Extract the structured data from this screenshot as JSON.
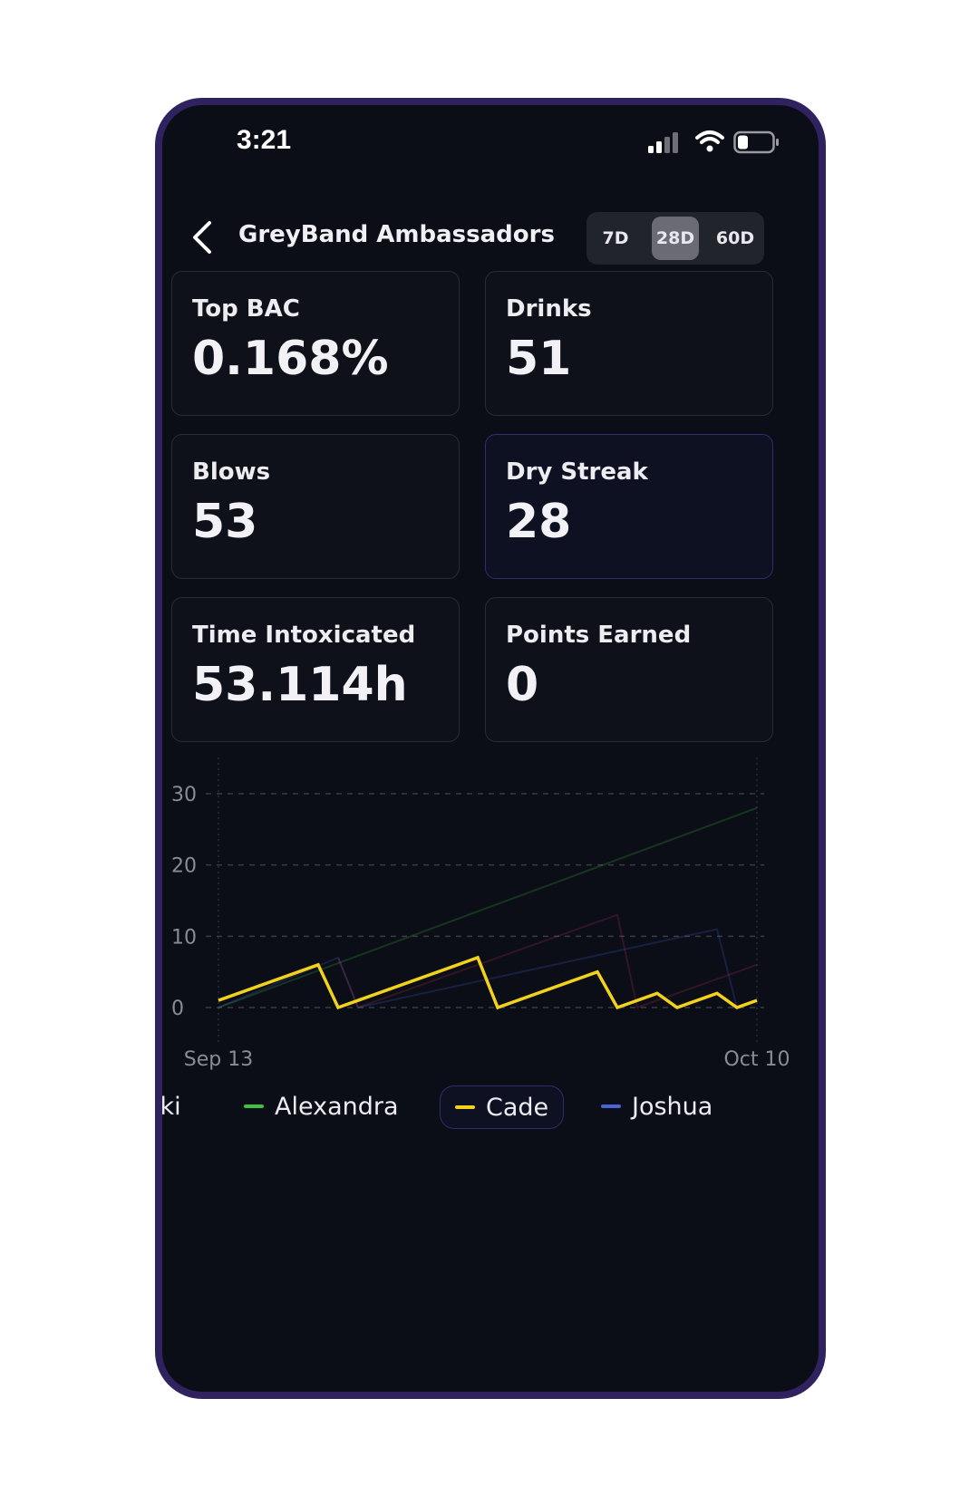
{
  "status_bar": {
    "time": "3:21"
  },
  "header": {
    "title": "GreyBand Ambassadors",
    "ranges": [
      "7D",
      "28D",
      "60D"
    ],
    "active_range": "28D"
  },
  "stats": {
    "top_bac": {
      "label": "Top BAC",
      "value": "0.168%"
    },
    "drinks": {
      "label": "Drinks",
      "value": "51"
    },
    "blows": {
      "label": "Blows",
      "value": "53"
    },
    "dry_streak": {
      "label": "Dry Streak",
      "value": "28"
    },
    "time_intoxicated": {
      "label": "Time Intoxicated",
      "value": "53.114h"
    },
    "points_earned": {
      "label": "Points Earned",
      "value": "0"
    }
  },
  "colors": {
    "accent_border": "#30225e",
    "cade": "#f2d21b",
    "alexandra": "#3ec23e",
    "joshua": "#4a63d8",
    "other": "#c0305a"
  },
  "chart_data": {
    "type": "line",
    "x": [
      "Sep 13",
      "Oct 10"
    ],
    "x_tick_labels": [
      "Sep 13",
      "Oct 10"
    ],
    "x_range": [
      0,
      27
    ],
    "ylim": [
      0,
      30
    ],
    "y_ticks": [
      0,
      10,
      20,
      30
    ],
    "grid": true,
    "selected_series": "Cade",
    "series": [
      {
        "name": "Cade",
        "color": "#f2d21b",
        "points": [
          [
            0,
            1
          ],
          [
            5,
            6
          ],
          [
            6,
            0
          ],
          [
            13,
            7
          ],
          [
            14,
            0
          ],
          [
            19,
            5
          ],
          [
            20,
            0
          ],
          [
            22,
            2
          ],
          [
            23,
            0
          ],
          [
            25,
            2
          ],
          [
            26,
            0
          ],
          [
            27,
            1
          ]
        ]
      },
      {
        "name": "Alexandra",
        "color": "#3ec23e",
        "points": [
          [
            0,
            0
          ],
          [
            27,
            28
          ]
        ]
      },
      {
        "name": "Joshua",
        "color": "#4a63d8",
        "points": [
          [
            0,
            0
          ],
          [
            6,
            7
          ],
          [
            7,
            0
          ],
          [
            25,
            11
          ],
          [
            26,
            0
          ]
        ]
      },
      {
        "name": "",
        "color": "#c0305a",
        "points": [
          [
            6,
            7
          ],
          [
            7,
            0
          ],
          [
            20,
            13
          ],
          [
            21,
            0
          ],
          [
            27,
            6
          ]
        ]
      }
    ],
    "legend": [
      {
        "label": "ıki",
        "color": ""
      },
      {
        "label": "Alexandra",
        "color": "#3ec23e"
      },
      {
        "label": "Cade",
        "color": "#f2d21b"
      },
      {
        "label": "Joshua",
        "color": "#4a63d8"
      }
    ]
  }
}
